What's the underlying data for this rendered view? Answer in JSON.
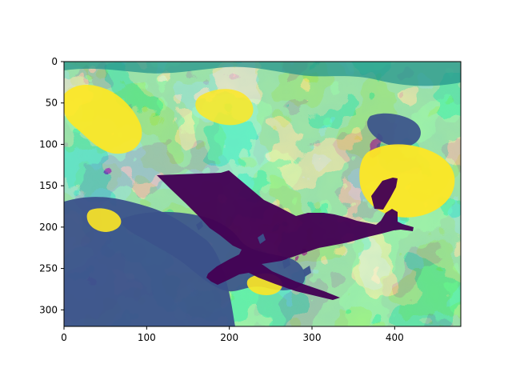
{
  "figure": {
    "kind": "image-plot",
    "subject": "airplane over colormapped terrain",
    "colormap": "viridis",
    "colors": {
      "dark_purple": "#440154",
      "purple": "#3b528b",
      "teal": "#21918c",
      "green": "#5ec962",
      "yellow": "#fde725",
      "axis": "#000000"
    }
  },
  "chart_data": {
    "type": "heatmap",
    "title": "",
    "xlabel": "",
    "ylabel": "",
    "xlim": [
      0,
      480
    ],
    "ylim": [
      320,
      0
    ],
    "x_ticks": [
      0,
      100,
      200,
      300,
      400
    ],
    "y_ticks": [
      0,
      50,
      100,
      150,
      200,
      250,
      300
    ],
    "x_tick_labels": [
      "0",
      "100",
      "200",
      "300",
      "400"
    ],
    "y_tick_labels": [
      "0",
      "50",
      "100",
      "150",
      "200",
      "250",
      "300"
    ],
    "grid": false,
    "legend": "none"
  }
}
